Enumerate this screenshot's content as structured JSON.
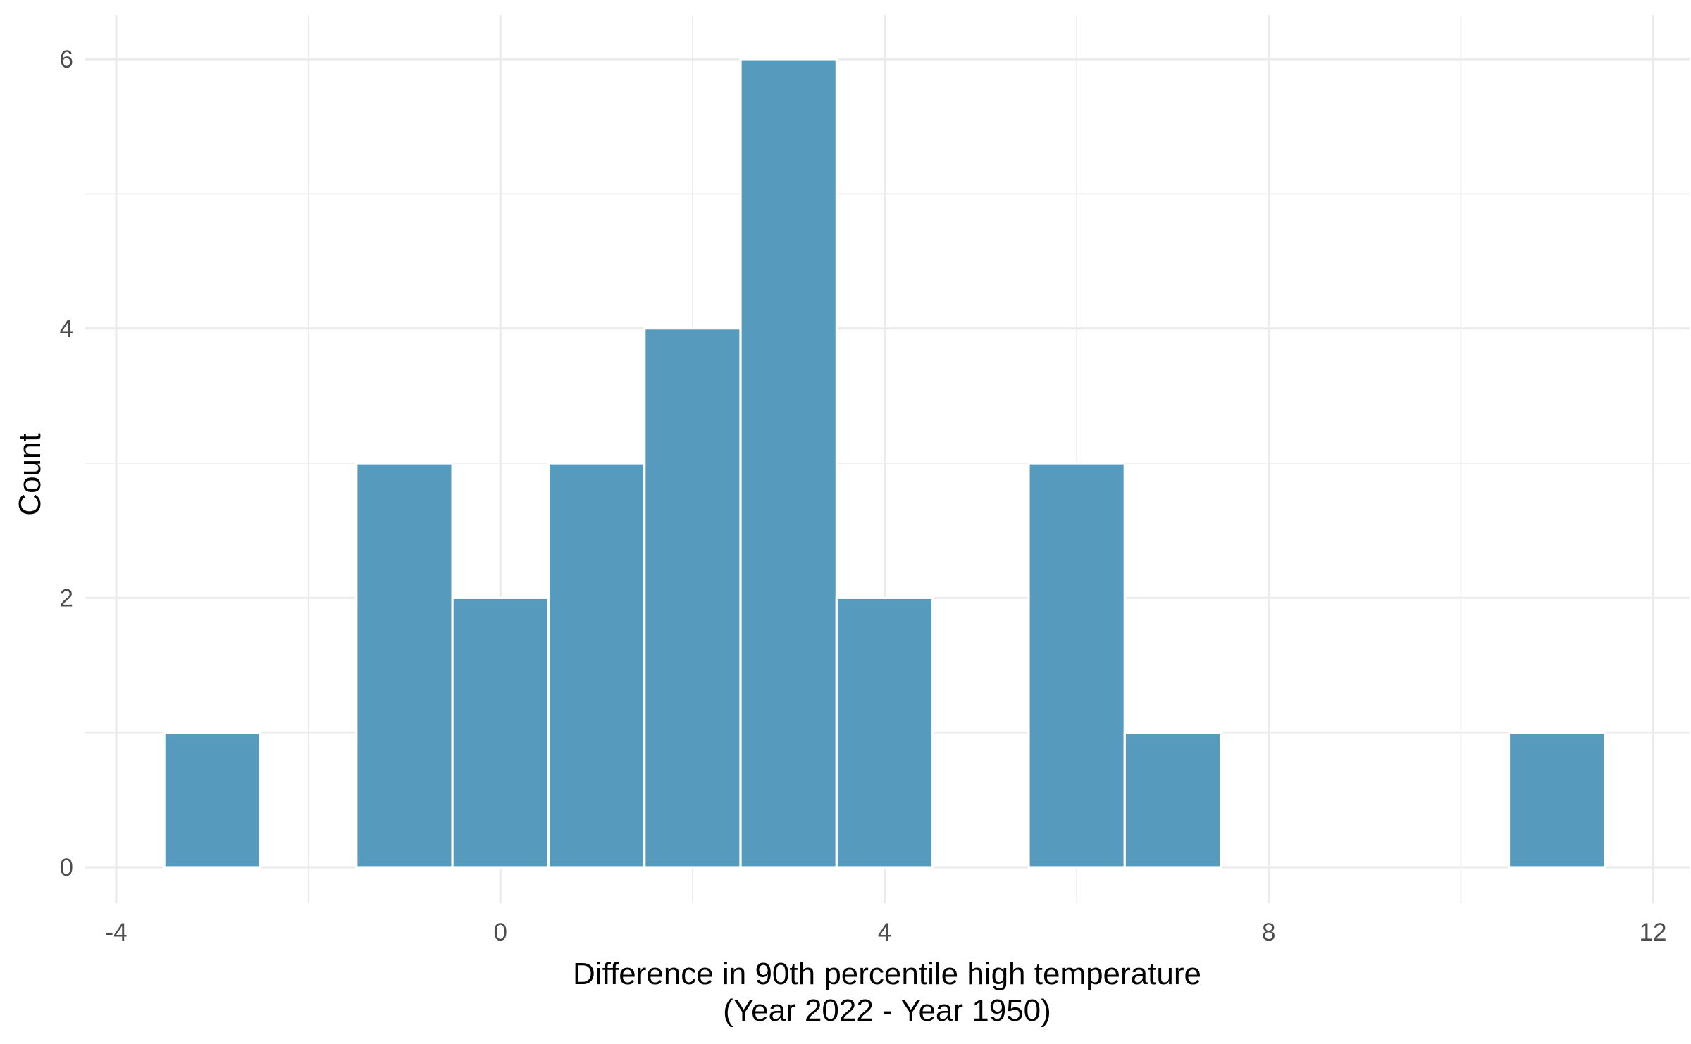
{
  "chart_data": {
    "type": "bar",
    "title": "",
    "xlabel": "Difference in 90th percentile high temperature",
    "xlabel_line2": "(Year 2022 - Year 1950)",
    "ylabel": "Count",
    "xlim": [
      -4,
      12
    ],
    "ylim": [
      0,
      6
    ],
    "x_ticks": [
      -4,
      0,
      4,
      8,
      12
    ],
    "x_tick_labels": [
      "-4",
      "0",
      "4",
      "8",
      "12"
    ],
    "y_ticks": [
      0,
      2,
      4,
      6
    ],
    "y_tick_labels": [
      "0",
      "2",
      "4",
      "6"
    ],
    "bin_width": 1,
    "x": [
      -3,
      -2,
      -1,
      0,
      1,
      2,
      3,
      4,
      5,
      6,
      7,
      8,
      9,
      10,
      11
    ],
    "values": [
      1,
      0,
      3,
      2,
      3,
      4,
      6,
      2,
      0,
      3,
      1,
      0,
      0,
      0,
      1
    ],
    "grid": true,
    "bar_color": "#569BBD",
    "bar_edge_color": "#ffffff"
  }
}
